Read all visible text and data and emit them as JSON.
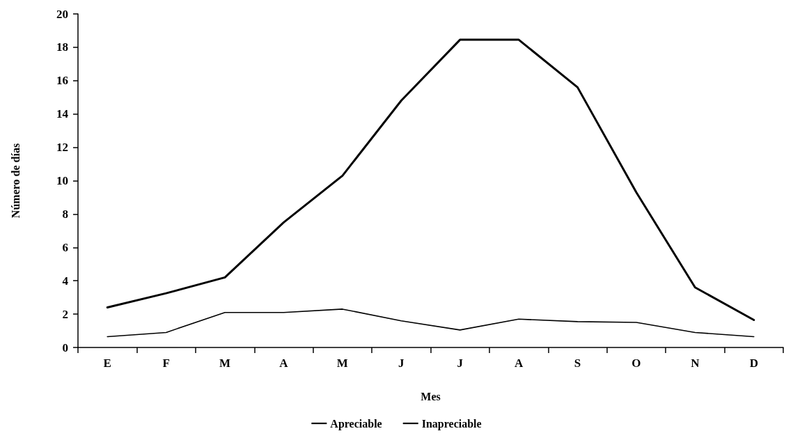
{
  "chart_data": {
    "type": "line",
    "xlabel": "Mes",
    "ylabel": "Número de días",
    "categories": [
      "E",
      "F",
      "M",
      "A",
      "M",
      "J",
      "J",
      "A",
      "S",
      "O",
      "N",
      "D"
    ],
    "series": [
      {
        "name": "Apreciable",
        "color": "#000000",
        "values": [
          2.4,
          3.25,
          4.2,
          7.5,
          10.3,
          14.8,
          18.45,
          18.45,
          15.6,
          9.3,
          3.6,
          1.65
        ]
      },
      {
        "name": "Inapreciable",
        "color": "#000000",
        "values": [
          0.65,
          0.9,
          2.1,
          2.1,
          2.3,
          1.6,
          1.05,
          1.7,
          1.55,
          1.5,
          0.9,
          0.65
        ]
      }
    ],
    "ylim": [
      0,
      20
    ],
    "yticks": [
      0,
      2,
      4,
      6,
      8,
      10,
      12,
      14,
      16,
      18,
      20
    ],
    "grid": false,
    "legend": "bottom",
    "marker": "none",
    "line_style": "solid"
  }
}
